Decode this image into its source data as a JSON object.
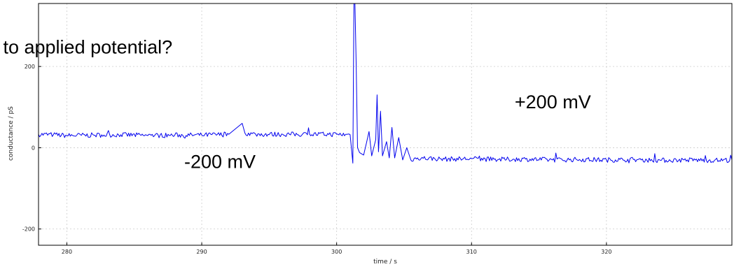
{
  "chart_data": {
    "type": "line",
    "title": "",
    "xlabel": "time / s",
    "ylabel": "conductance / pS",
    "xlim": [
      277.9,
      329.3
    ],
    "ylim": [
      -240,
      355
    ],
    "x_ticks": [
      280,
      290,
      300,
      310,
      320
    ],
    "y_ticks": [
      -200,
      0,
      200
    ],
    "grid": true,
    "line_color": "#0000ee",
    "series": [
      {
        "values": [
          [
            277.9,
            33
          ],
          [
            279,
            32
          ],
          [
            280,
            30
          ],
          [
            282,
            31
          ],
          [
            284,
            32
          ],
          [
            286,
            30
          ],
          [
            288,
            31
          ],
          [
            290,
            31
          ],
          [
            292,
            33
          ],
          [
            293.0,
            60
          ],
          [
            293.2,
            36
          ],
          [
            294,
            33
          ],
          [
            296,
            33
          ],
          [
            298,
            33
          ],
          [
            300,
            33
          ],
          [
            301.0,
            32
          ],
          [
            301.2,
            -38
          ],
          [
            301.3,
            450
          ],
          [
            301.45,
            200
          ],
          [
            301.55,
            0
          ],
          [
            301.7,
            -12
          ],
          [
            302.0,
            -18
          ],
          [
            302.2,
            10
          ],
          [
            302.4,
            40
          ],
          [
            302.6,
            -20
          ],
          [
            302.9,
            20
          ],
          [
            303.0,
            130
          ],
          [
            303.1,
            -10
          ],
          [
            303.25,
            90
          ],
          [
            303.4,
            -20
          ],
          [
            303.7,
            15
          ],
          [
            303.9,
            -25
          ],
          [
            304.1,
            50
          ],
          [
            304.3,
            -25
          ],
          [
            304.6,
            25
          ],
          [
            304.9,
            -30
          ],
          [
            305.2,
            0
          ],
          [
            305.5,
            -30
          ],
          [
            306,
            -25
          ],
          [
            308,
            -28
          ],
          [
            310,
            -27
          ],
          [
            312,
            -29
          ],
          [
            314,
            -28
          ],
          [
            316,
            -30
          ],
          [
            318,
            -29
          ],
          [
            320,
            -30
          ],
          [
            322,
            -29
          ],
          [
            324,
            -31
          ],
          [
            326,
            -30
          ],
          [
            328,
            -31
          ],
          [
            329.3,
            -30
          ]
        ]
      }
    ],
    "annotations": [
      {
        "text": "r to applied potential?",
        "x": 277.9,
        "y": 232
      },
      {
        "text": "+200 mV",
        "x": 313.2,
        "y": 97
      },
      {
        "text": "-200 mV",
        "x": 288.7,
        "y": -50
      }
    ]
  }
}
